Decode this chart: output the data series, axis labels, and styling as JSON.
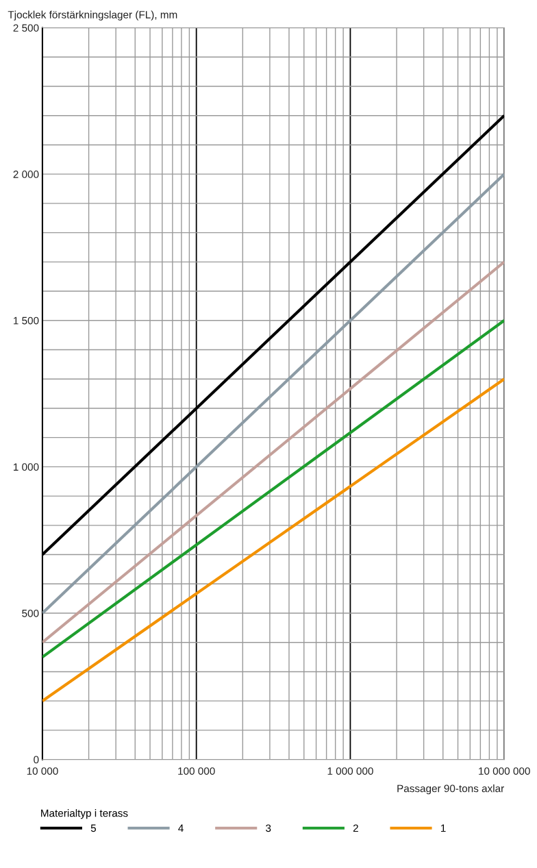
{
  "chart_data": {
    "type": "line",
    "ylabel": "Tjocklek förstärkningslager (FL), mm",
    "xlabel": "Passager 90-tons axlar",
    "legend_title": "Materialtyp i terass",
    "log": "x",
    "xlim": [
      10000,
      10000000
    ],
    "xticks": [
      {
        "value": 10000,
        "label": "10 000"
      },
      {
        "value": 20000,
        "label": null
      },
      {
        "value": 30000,
        "label": null
      },
      {
        "value": 40000,
        "label": null
      },
      {
        "value": 50000,
        "label": null
      },
      {
        "value": 60000,
        "label": null
      },
      {
        "value": 70000,
        "label": null
      },
      {
        "value": 80000,
        "label": null
      },
      {
        "value": 90000,
        "label": null
      },
      {
        "value": 100000,
        "label": "100 000"
      },
      {
        "value": 200000,
        "label": null
      },
      {
        "value": 300000,
        "label": null
      },
      {
        "value": 400000,
        "label": null
      },
      {
        "value": 500000,
        "label": null
      },
      {
        "value": 600000,
        "label": null
      },
      {
        "value": 700000,
        "label": null
      },
      {
        "value": 800000,
        "label": null
      },
      {
        "value": 900000,
        "label": null
      },
      {
        "value": 1000000,
        "label": "1 000 000"
      },
      {
        "value": 2000000,
        "label": null
      },
      {
        "value": 3000000,
        "label": null
      },
      {
        "value": 4000000,
        "label": null
      },
      {
        "value": 5000000,
        "label": null
      },
      {
        "value": 6000000,
        "label": null
      },
      {
        "value": 7000000,
        "label": null
      },
      {
        "value": 8000000,
        "label": null
      },
      {
        "value": 9000000,
        "label": null
      },
      {
        "value": 10000000,
        "label": "10 000 000"
      }
    ],
    "ylim": [
      0,
      2500
    ],
    "yticks": [
      0,
      {
        "value": 100,
        "label": null
      },
      {
        "value": 200,
        "label": null
      },
      {
        "value": 300,
        "label": null
      },
      {
        "value": 400,
        "label": null
      },
      500,
      {
        "value": 600,
        "label": null
      },
      {
        "value": 700,
        "label": null
      },
      {
        "value": 800,
        "label": null
      },
      {
        "value": 900,
        "label": null
      },
      {
        "value": 1000,
        "label": "1 000"
      },
      {
        "value": 1100,
        "label": null
      },
      {
        "value": 1200,
        "label": null
      },
      {
        "value": 1300,
        "label": null
      },
      {
        "value": 1400,
        "label": null
      },
      {
        "value": 1500,
        "label": "1 500"
      },
      {
        "value": 1600,
        "label": null
      },
      {
        "value": 1700,
        "label": null
      },
      {
        "value": 1800,
        "label": null
      },
      {
        "value": 1900,
        "label": null
      },
      {
        "value": 2000,
        "label": "2 000"
      },
      {
        "value": 2100,
        "label": null
      },
      {
        "value": 2200,
        "label": null
      },
      {
        "value": 2300,
        "label": null
      },
      {
        "value": 2400,
        "label": null
      },
      {
        "value": 2500,
        "label": "2 500"
      }
    ],
    "grid": true,
    "legend": "bottom",
    "marker": "none",
    "line_style": "solid",
    "x": [
      10000,
      10000000
    ],
    "series": [
      {
        "name": "5",
        "color": "#000000",
        "values": [
          700,
          2200
        ]
      },
      {
        "name": "4",
        "color": "#8c9ba5",
        "values": [
          500,
          2000
        ]
      },
      {
        "name": "3",
        "color": "#c4a09a",
        "values": [
          400,
          1700
        ]
      },
      {
        "name": "2",
        "color": "#1e9e2e",
        "values": [
          350,
          1500
        ]
      },
      {
        "name": "1",
        "color": "#f39200",
        "values": [
          200,
          1300
        ]
      }
    ]
  }
}
